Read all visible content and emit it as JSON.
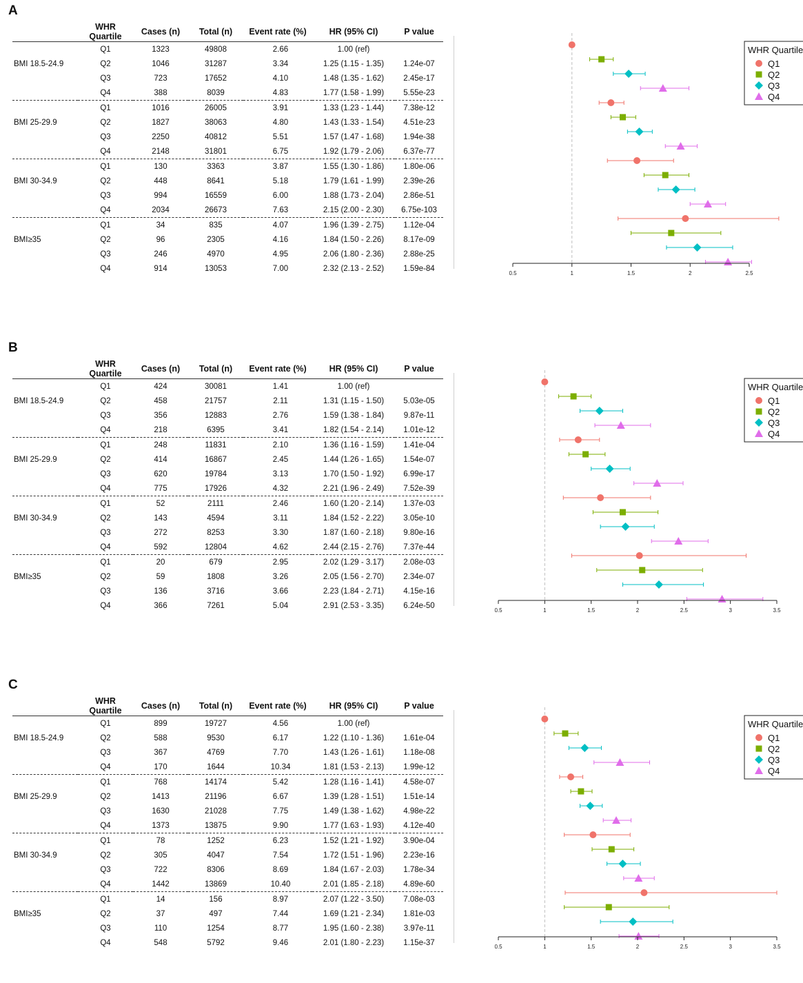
{
  "header": {
    "quartile": "WHR Quartile",
    "cases": "Cases (n)",
    "total": "Total (n)",
    "rate": "Event rate (%)",
    "hr": "HR (95% CI)",
    "p": "P value"
  },
  "legend": {
    "title": "WHR Quartile",
    "items": [
      "Q1",
      "Q2",
      "Q3",
      "Q4"
    ],
    "colors": [
      "#F0736A",
      "#7CAE00",
      "#00BFC4",
      "#E06DEA"
    ],
    "shapes": [
      "circle",
      "square",
      "diamond",
      "triangle"
    ]
  },
  "panels": [
    {
      "label": "A",
      "rows": [
        {
          "group": "",
          "q": "Q1",
          "cases": "1323",
          "total": "49808",
          "rate": "2.66",
          "hr": "1.00 (ref)",
          "p": ""
        },
        {
          "group": "BMI 18.5-24.9",
          "q": "Q2",
          "cases": "1046",
          "total": "31287",
          "rate": "3.34",
          "hr": "1.25 (1.15 - 1.35)",
          "p": "1.24e-07"
        },
        {
          "group": "",
          "q": "Q3",
          "cases": "723",
          "total": "17652",
          "rate": "4.10",
          "hr": "1.48 (1.35 - 1.62)",
          "p": "2.45e-17"
        },
        {
          "group": "",
          "q": "Q4",
          "cases": "388",
          "total": "8039",
          "rate": "4.83",
          "hr": "1.77 (1.58 - 1.99)",
          "p": "5.55e-23"
        },
        {
          "group": "",
          "q": "Q1",
          "cases": "1016",
          "total": "26005",
          "rate": "3.91",
          "hr": "1.33 (1.23 - 1.44)",
          "p": "7.38e-12"
        },
        {
          "group": "BMI 25-29.9",
          "q": "Q2",
          "cases": "1827",
          "total": "38063",
          "rate": "4.80",
          "hr": "1.43 (1.33 - 1.54)",
          "p": "4.51e-23"
        },
        {
          "group": "",
          "q": "Q3",
          "cases": "2250",
          "total": "40812",
          "rate": "5.51",
          "hr": "1.57 (1.47 - 1.68)",
          "p": "1.94e-38"
        },
        {
          "group": "",
          "q": "Q4",
          "cases": "2148",
          "total": "31801",
          "rate": "6.75",
          "hr": "1.92 (1.79 - 2.06)",
          "p": "6.37e-77"
        },
        {
          "group": "",
          "q": "Q1",
          "cases": "130",
          "total": "3363",
          "rate": "3.87",
          "hr": "1.55 (1.30 - 1.86)",
          "p": "1.80e-06"
        },
        {
          "group": "BMI 30-34.9",
          "q": "Q2",
          "cases": "448",
          "total": "8641",
          "rate": "5.18",
          "hr": "1.79 (1.61 - 1.99)",
          "p": "2.39e-26"
        },
        {
          "group": "",
          "q": "Q3",
          "cases": "994",
          "total": "16559",
          "rate": "6.00",
          "hr": "1.88 (1.73 - 2.04)",
          "p": "2.86e-51"
        },
        {
          "group": "",
          "q": "Q4",
          "cases": "2034",
          "total": "26673",
          "rate": "7.63",
          "hr": "2.15 (2.00 - 2.30)",
          "p": "6.75e-103"
        },
        {
          "group": "",
          "q": "Q1",
          "cases": "34",
          "total": "835",
          "rate": "4.07",
          "hr": "1.96 (1.39 - 2.75)",
          "p": "1.12e-04"
        },
        {
          "group": "BMI≥35",
          "q": "Q2",
          "cases": "96",
          "total": "2305",
          "rate": "4.16",
          "hr": "1.84 (1.50 - 2.26)",
          "p": "8.17e-09"
        },
        {
          "group": "",
          "q": "Q3",
          "cases": "246",
          "total": "4970",
          "rate": "4.95",
          "hr": "2.06 (1.80 - 2.36)",
          "p": "2.88e-25"
        },
        {
          "group": "",
          "q": "Q4",
          "cases": "914",
          "total": "13053",
          "rate": "7.00",
          "hr": "2.32 (2.13 - 2.52)",
          "p": "1.59e-84"
        }
      ]
    },
    {
      "label": "B",
      "rows": [
        {
          "group": "",
          "q": "Q1",
          "cases": "424",
          "total": "30081",
          "rate": "1.41",
          "hr": "1.00 (ref)",
          "p": ""
        },
        {
          "group": "BMI 18.5-24.9",
          "q": "Q2",
          "cases": "458",
          "total": "21757",
          "rate": "2.11",
          "hr": "1.31 (1.15 - 1.50)",
          "p": "5.03e-05"
        },
        {
          "group": "",
          "q": "Q3",
          "cases": "356",
          "total": "12883",
          "rate": "2.76",
          "hr": "1.59 (1.38 - 1.84)",
          "p": "9.87e-11"
        },
        {
          "group": "",
          "q": "Q4",
          "cases": "218",
          "total": "6395",
          "rate": "3.41",
          "hr": "1.82 (1.54 - 2.14)",
          "p": "1.01e-12"
        },
        {
          "group": "",
          "q": "Q1",
          "cases": "248",
          "total": "11831",
          "rate": "2.10",
          "hr": "1.36 (1.16 - 1.59)",
          "p": "1.41e-04"
        },
        {
          "group": "BMI 25-29.9",
          "q": "Q2",
          "cases": "414",
          "total": "16867",
          "rate": "2.45",
          "hr": "1.44 (1.26 - 1.65)",
          "p": "1.54e-07"
        },
        {
          "group": "",
          "q": "Q3",
          "cases": "620",
          "total": "19784",
          "rate": "3.13",
          "hr": "1.70 (1.50 - 1.92)",
          "p": "6.99e-17"
        },
        {
          "group": "",
          "q": "Q4",
          "cases": "775",
          "total": "17926",
          "rate": "4.32",
          "hr": "2.21 (1.96 - 2.49)",
          "p": "7.52e-39"
        },
        {
          "group": "",
          "q": "Q1",
          "cases": "52",
          "total": "2111",
          "rate": "2.46",
          "hr": "1.60 (1.20 - 2.14)",
          "p": "1.37e-03"
        },
        {
          "group": "BMI 30-34.9",
          "q": "Q2",
          "cases": "143",
          "total": "4594",
          "rate": "3.11",
          "hr": "1.84 (1.52 - 2.22)",
          "p": "3.05e-10"
        },
        {
          "group": "",
          "q": "Q3",
          "cases": "272",
          "total": "8253",
          "rate": "3.30",
          "hr": "1.87 (1.60 - 2.18)",
          "p": "9.80e-16"
        },
        {
          "group": "",
          "q": "Q4",
          "cases": "592",
          "total": "12804",
          "rate": "4.62",
          "hr": "2.44 (2.15 - 2.76)",
          "p": "7.37e-44"
        },
        {
          "group": "",
          "q": "Q1",
          "cases": "20",
          "total": "679",
          "rate": "2.95",
          "hr": "2.02 (1.29 - 3.17)",
          "p": "2.08e-03"
        },
        {
          "group": "BMI≥35",
          "q": "Q2",
          "cases": "59",
          "total": "1808",
          "rate": "3.26",
          "hr": "2.05 (1.56 - 2.70)",
          "p": "2.34e-07"
        },
        {
          "group": "",
          "q": "Q3",
          "cases": "136",
          "total": "3716",
          "rate": "3.66",
          "hr": "2.23 (1.84 - 2.71)",
          "p": "4.15e-16"
        },
        {
          "group": "",
          "q": "Q4",
          "cases": "366",
          "total": "7261",
          "rate": "5.04",
          "hr": "2.91 (2.53 - 3.35)",
          "p": "6.24e-50"
        }
      ]
    },
    {
      "label": "C",
      "rows": [
        {
          "group": "",
          "q": "Q1",
          "cases": "899",
          "total": "19727",
          "rate": "4.56",
          "hr": "1.00 (ref)",
          "p": ""
        },
        {
          "group": "BMI 18.5-24.9",
          "q": "Q2",
          "cases": "588",
          "total": "9530",
          "rate": "6.17",
          "hr": "1.22 (1.10 - 1.36)",
          "p": "1.61e-04"
        },
        {
          "group": "",
          "q": "Q3",
          "cases": "367",
          "total": "4769",
          "rate": "7.70",
          "hr": "1.43 (1.26 - 1.61)",
          "p": "1.18e-08"
        },
        {
          "group": "",
          "q": "Q4",
          "cases": "170",
          "total": "1644",
          "rate": "10.34",
          "hr": "1.81 (1.53 - 2.13)",
          "p": "1.99e-12"
        },
        {
          "group": "",
          "q": "Q1",
          "cases": "768",
          "total": "14174",
          "rate": "5.42",
          "hr": "1.28 (1.16 - 1.41)",
          "p": "4.58e-07"
        },
        {
          "group": "BMI 25-29.9",
          "q": "Q2",
          "cases": "1413",
          "total": "21196",
          "rate": "6.67",
          "hr": "1.39 (1.28 - 1.51)",
          "p": "1.51e-14"
        },
        {
          "group": "",
          "q": "Q3",
          "cases": "1630",
          "total": "21028",
          "rate": "7.75",
          "hr": "1.49 (1.38 - 1.62)",
          "p": "4.98e-22"
        },
        {
          "group": "",
          "q": "Q4",
          "cases": "1373",
          "total": "13875",
          "rate": "9.90",
          "hr": "1.77 (1.63 - 1.93)",
          "p": "4.12e-40"
        },
        {
          "group": "",
          "q": "Q1",
          "cases": "78",
          "total": "1252",
          "rate": "6.23",
          "hr": "1.52 (1.21 - 1.92)",
          "p": "3.90e-04"
        },
        {
          "group": "BMI 30-34.9",
          "q": "Q2",
          "cases": "305",
          "total": "4047",
          "rate": "7.54",
          "hr": "1.72 (1.51 - 1.96)",
          "p": "2.23e-16"
        },
        {
          "group": "",
          "q": "Q3",
          "cases": "722",
          "total": "8306",
          "rate": "8.69",
          "hr": "1.84 (1.67 - 2.03)",
          "p": "1.78e-34"
        },
        {
          "group": "",
          "q": "Q4",
          "cases": "1442",
          "total": "13869",
          "rate": "10.40",
          "hr": "2.01 (1.85 - 2.18)",
          "p": "4.89e-60"
        },
        {
          "group": "",
          "q": "Q1",
          "cases": "14",
          "total": "156",
          "rate": "8.97",
          "hr": "2.07 (1.22 - 3.50)",
          "p": "7.08e-03"
        },
        {
          "group": "BMI≥35",
          "q": "Q2",
          "cases": "37",
          "total": "497",
          "rate": "7.44",
          "hr": "1.69 (1.21 - 2.34)",
          "p": "1.81e-03"
        },
        {
          "group": "",
          "q": "Q3",
          "cases": "110",
          "total": "1254",
          "rate": "8.77",
          "hr": "1.95 (1.60 - 2.38)",
          "p": "3.97e-11"
        },
        {
          "group": "",
          "q": "Q4",
          "cases": "548",
          "total": "5792",
          "rate": "9.46",
          "hr": "2.01 (1.80 - 2.23)",
          "p": "1.15e-37"
        }
      ]
    }
  ],
  "chart_data": [
    {
      "type": "scatter",
      "panel": "A",
      "xlim": [
        0.5,
        2.5
      ],
      "xticks": [
        0.5,
        1,
        1.5,
        2,
        2.5
      ],
      "reference_line": 1,
      "legend_position": "top-right",
      "series": [
        {
          "name": "Q1",
          "hr": [
            1.0,
            1.33,
            1.55,
            1.96
          ],
          "lo": [
            null,
            1.23,
            1.3,
            1.39
          ],
          "hi": [
            null,
            1.44,
            1.86,
            2.75
          ]
        },
        {
          "name": "Q2",
          "hr": [
            1.25,
            1.43,
            1.79,
            1.84
          ],
          "lo": [
            1.15,
            1.33,
            1.61,
            1.5
          ],
          "hi": [
            1.35,
            1.54,
            1.99,
            2.26
          ]
        },
        {
          "name": "Q3",
          "hr": [
            1.48,
            1.57,
            1.88,
            2.06
          ],
          "lo": [
            1.35,
            1.47,
            1.73,
            1.8
          ],
          "hi": [
            1.62,
            1.68,
            2.04,
            2.36
          ]
        },
        {
          "name": "Q4",
          "hr": [
            1.77,
            1.92,
            2.15,
            2.32
          ],
          "lo": [
            1.58,
            1.79,
            2.0,
            2.13
          ],
          "hi": [
            1.99,
            2.06,
            2.3,
            2.52
          ]
        }
      ]
    },
    {
      "type": "scatter",
      "panel": "B",
      "xlim": [
        0.5,
        3.5
      ],
      "xticks": [
        0.5,
        1,
        1.5,
        2,
        2.5,
        3,
        3.5
      ],
      "reference_line": 1,
      "legend_position": "top-right",
      "series": [
        {
          "name": "Q1",
          "hr": [
            1.0,
            1.36,
            1.6,
            2.02
          ],
          "lo": [
            null,
            1.16,
            1.2,
            1.29
          ],
          "hi": [
            null,
            1.59,
            2.14,
            3.17
          ]
        },
        {
          "name": "Q2",
          "hr": [
            1.31,
            1.44,
            1.84,
            2.05
          ],
          "lo": [
            1.15,
            1.26,
            1.52,
            1.56
          ],
          "hi": [
            1.5,
            1.65,
            2.22,
            2.7
          ]
        },
        {
          "name": "Q3",
          "hr": [
            1.59,
            1.7,
            1.87,
            2.23
          ],
          "lo": [
            1.38,
            1.5,
            1.6,
            1.84
          ],
          "hi": [
            1.84,
            1.92,
            2.18,
            2.71
          ]
        },
        {
          "name": "Q4",
          "hr": [
            1.82,
            2.21,
            2.44,
            2.91
          ],
          "lo": [
            1.54,
            1.96,
            2.15,
            2.53
          ],
          "hi": [
            2.14,
            2.49,
            2.76,
            3.35
          ]
        }
      ]
    },
    {
      "type": "scatter",
      "panel": "C",
      "xlim": [
        0.5,
        3.5
      ],
      "xticks": [
        0.5,
        1,
        1.5,
        2,
        2.5,
        3,
        3.5
      ],
      "reference_line": 1,
      "legend_position": "top-right",
      "series": [
        {
          "name": "Q1",
          "hr": [
            1.0,
            1.28,
            1.52,
            2.07
          ],
          "lo": [
            null,
            1.16,
            1.21,
            1.22
          ],
          "hi": [
            null,
            1.41,
            1.92,
            3.5
          ]
        },
        {
          "name": "Q2",
          "hr": [
            1.22,
            1.39,
            1.72,
            1.69
          ],
          "lo": [
            1.1,
            1.28,
            1.51,
            1.21
          ],
          "hi": [
            1.36,
            1.51,
            1.96,
            2.34
          ]
        },
        {
          "name": "Q3",
          "hr": [
            1.43,
            1.49,
            1.84,
            1.95
          ],
          "lo": [
            1.26,
            1.38,
            1.67,
            1.6
          ],
          "hi": [
            1.61,
            1.62,
            2.03,
            2.38
          ]
        },
        {
          "name": "Q4",
          "hr": [
            1.81,
            1.77,
            2.01,
            2.01
          ],
          "lo": [
            1.53,
            1.63,
            1.85,
            1.8
          ],
          "hi": [
            2.13,
            1.93,
            2.18,
            2.23
          ]
        }
      ]
    }
  ]
}
